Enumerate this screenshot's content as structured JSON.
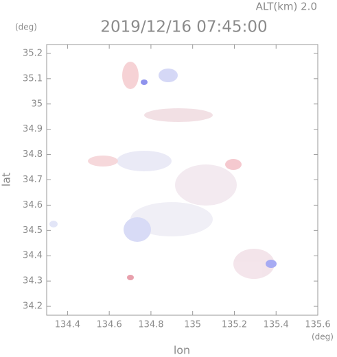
{
  "chart_data": {
    "type": "map",
    "altitude_label": "ALT(km) 2.0",
    "title": "2019/12/16 07:45:00",
    "xlabel": "lon",
    "ylabel": "lat",
    "x_unit": "(deg)",
    "y_unit": "(deg)",
    "xlim": [
      134.3,
      135.6
    ],
    "ylim": [
      34.165,
      35.235
    ],
    "xticks": [
      134.4,
      134.6,
      134.8,
      135.0,
      135.2,
      135.4,
      135.6
    ],
    "yticks": [
      34.2,
      34.3,
      34.4,
      34.5,
      34.6,
      34.7,
      34.8,
      34.9,
      35.0,
      35.1,
      35.2
    ]
  }
}
